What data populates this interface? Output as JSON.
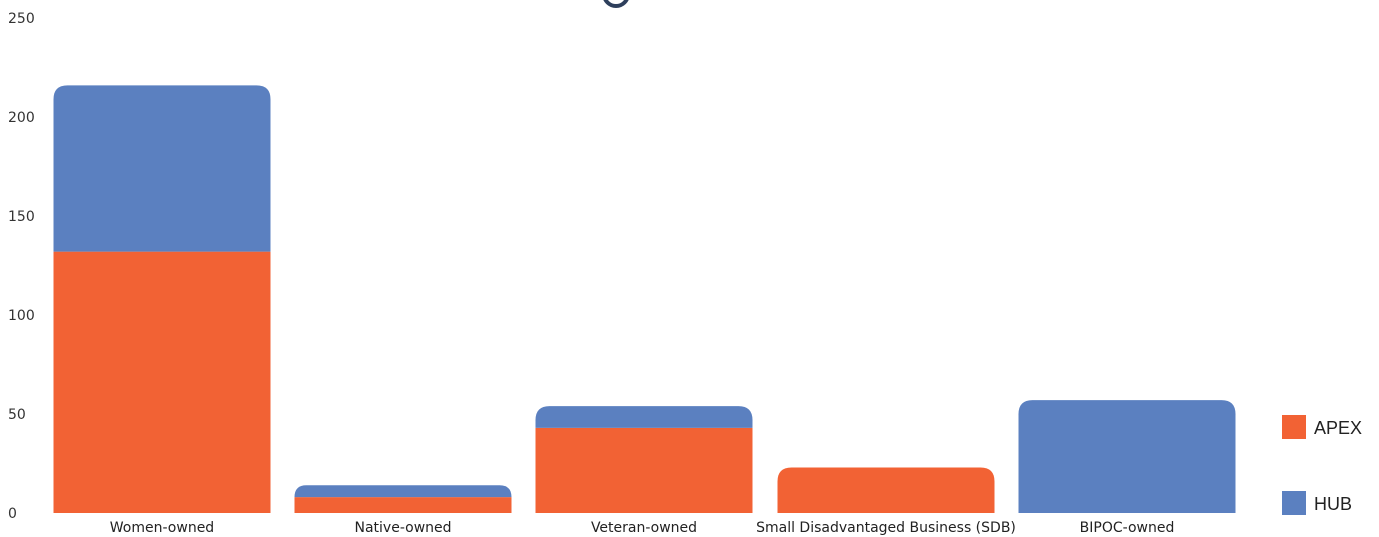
{
  "chart_data": {
    "type": "bar",
    "stacked": true,
    "categories": [
      "Women-owned",
      "Native-owned",
      "Veteran-owned",
      "Small Disadvantaged Business (SDB)",
      "BIPOC-owned"
    ],
    "series": [
      {
        "name": "APEX",
        "color": "#f26234",
        "values": [
          132,
          8,
          43,
          23,
          0
        ]
      },
      {
        "name": "HUB",
        "color": "#5b80c0",
        "values": [
          84,
          6,
          11,
          0,
          57
        ]
      }
    ],
    "ylim": [
      0,
      250
    ],
    "yticks": [
      0,
      50,
      100,
      150,
      200,
      250
    ],
    "grid": false,
    "legend": "right"
  }
}
